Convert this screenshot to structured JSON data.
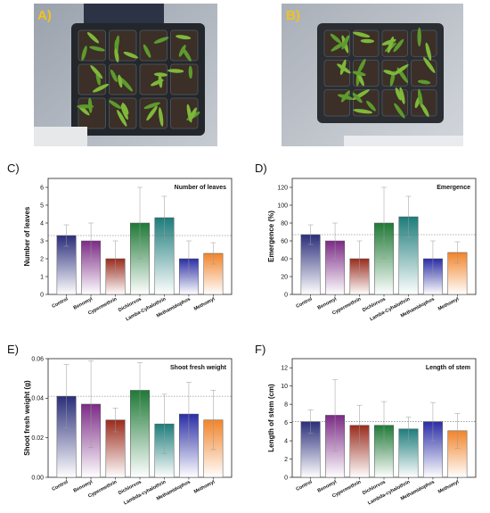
{
  "photos": [
    {
      "label": "A)"
    },
    {
      "label": "B)"
    }
  ],
  "panels": [
    {
      "letter": "C)"
    },
    {
      "letter": "D)"
    },
    {
      "letter": "E)"
    },
    {
      "letter": "F)"
    }
  ],
  "chart_data": [
    {
      "type": "bar",
      "title": "Number of leaves",
      "ylabel": "Number of leaves",
      "categories": [
        "Control",
        "Benomyl",
        "Cypermethrin",
        "Dichlorvos",
        "Lamba-Cyhalothrin",
        "Methamidophos",
        "Methomyl"
      ],
      "values": [
        3.3,
        3.0,
        2.0,
        4.0,
        4.3,
        2.0,
        2.3
      ],
      "errors": [
        0.6,
        1.0,
        1.0,
        2.0,
        1.2,
        1.0,
        0.6
      ],
      "ylim": [
        0,
        6.5
      ],
      "yticks": [
        "0",
        "1",
        "2",
        "3",
        "4",
        "5",
        "6"
      ],
      "reference_line": 3.3,
      "colors": [
        "#2a2d7a",
        "#7c2a86",
        "#9a2b1c",
        "#1e7a36",
        "#1c7d7b",
        "#2a2da6",
        "#f2842a"
      ]
    },
    {
      "type": "bar",
      "title": "Emergence",
      "ylabel": "Emergence (%)",
      "categories": [
        "Control",
        "Benomyl",
        "Cypermethrin",
        "Dichlorvos",
        "Lamba-Cyhalothrin",
        "Methamidophos",
        "Methomyl"
      ],
      "values": [
        67,
        60,
        40,
        80,
        87,
        40,
        47
      ],
      "errors": [
        11,
        20,
        20,
        40,
        23,
        20,
        12
      ],
      "ylim": [
        0,
        130
      ],
      "yticks": [
        "0",
        "20",
        "40",
        "60",
        "80",
        "100",
        "120"
      ],
      "reference_line": 67,
      "colors": [
        "#2a2d7a",
        "#7c2a86",
        "#9a2b1c",
        "#1e7a36",
        "#1c7d7b",
        "#2a2da6",
        "#f2842a"
      ]
    },
    {
      "type": "bar",
      "title": "Shoot fresh weight",
      "ylabel": "Shoot fresh weight (g)",
      "categories": [
        "Control",
        "Benomyl",
        "Cypermethrin",
        "Dichlorvos",
        "Lambda-cyhalothrin",
        "Methamidophos",
        "Methomyl"
      ],
      "values": [
        0.041,
        0.037,
        0.029,
        0.044,
        0.027,
        0.032,
        0.029
      ],
      "errors": [
        0.016,
        0.022,
        0.006,
        0.014,
        0.015,
        0.016,
        0.015
      ],
      "ylim": [
        0,
        0.06
      ],
      "yticks": [
        "0.00",
        "0.02",
        "0.04",
        "0.06"
      ],
      "reference_line": 0.041,
      "colors": [
        "#2a2d7a",
        "#7c2a86",
        "#9a2b1c",
        "#1e7a36",
        "#1c7d7b",
        "#2a2da6",
        "#f2842a"
      ]
    },
    {
      "type": "bar",
      "title": "Length of stem",
      "ylabel": "Length of stem (cm)",
      "categories": [
        "Control",
        "Benomyl",
        "Cypermethrin",
        "Dichlorvos",
        "Lambda-cyhalothrin",
        "Methamidophos",
        "Methomyl"
      ],
      "values": [
        6.1,
        6.8,
        5.7,
        5.7,
        5.3,
        6.1,
        5.1
      ],
      "errors": [
        1.3,
        3.9,
        2.2,
        2.6,
        1.3,
        2.1,
        1.9
      ],
      "ylim": [
        0,
        13
      ],
      "yticks": [
        "0",
        "2",
        "4",
        "6",
        "8",
        "10",
        "12"
      ],
      "reference_line": 6.1,
      "colors": [
        "#2a2d7a",
        "#7c2a86",
        "#9a2b1c",
        "#1e7a36",
        "#1c7d7b",
        "#2a2da6",
        "#f2842a"
      ]
    }
  ]
}
